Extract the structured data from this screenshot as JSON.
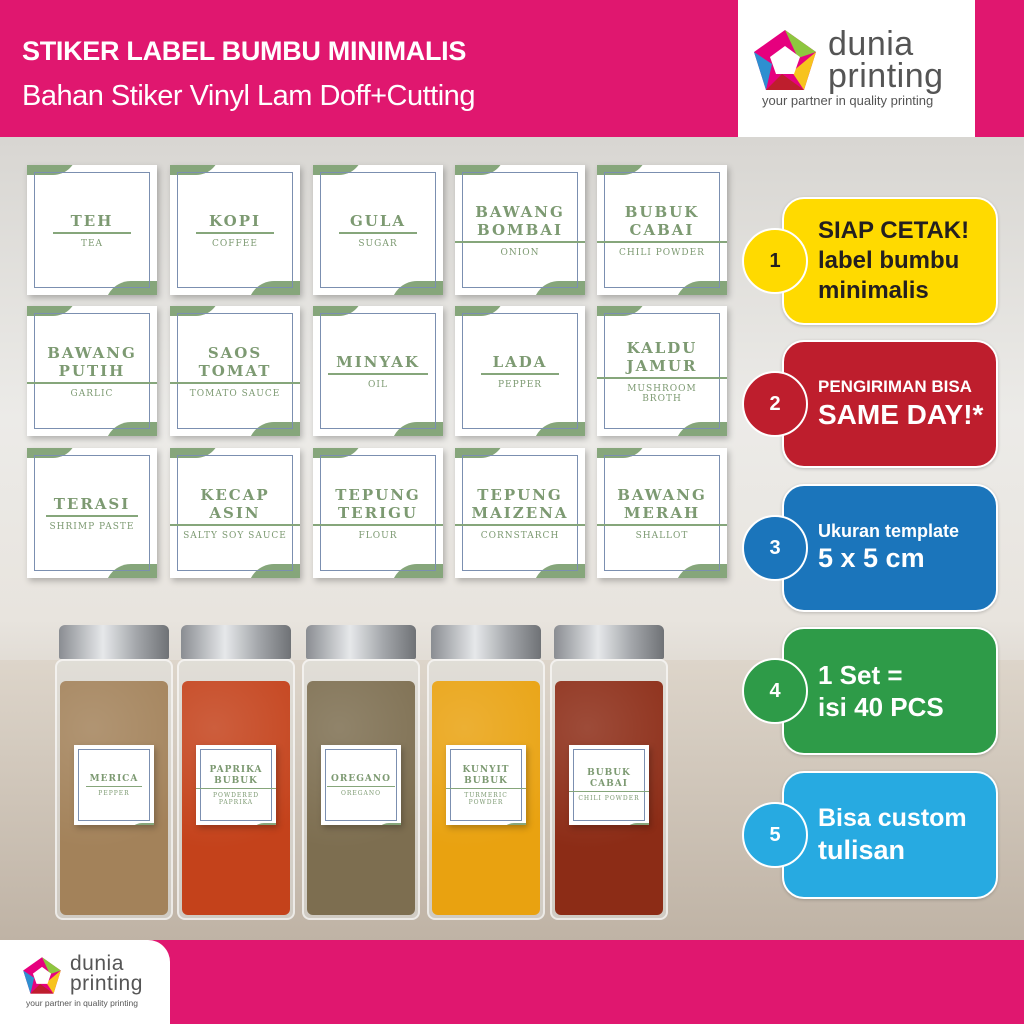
{
  "header": {
    "title": "STIKER LABEL BUMBU MINIMALIS",
    "subtitle": "Bahan Stiker Vinyl Lam Doff+Cutting"
  },
  "logo": {
    "word1": "dunia",
    "word2": "printing",
    "tagline": "your partner in quality printing",
    "colors": [
      "#e6007e",
      "#8dc63f",
      "#f7941d",
      "#be1e2d",
      "#2e8fd0"
    ]
  },
  "labels": [
    {
      "main": "TEH",
      "sub": "TEA"
    },
    {
      "main": "KOPI",
      "sub": "COFFEE"
    },
    {
      "main": "GULA",
      "sub": "SUGAR"
    },
    {
      "main": "BAWANG BOMBAI",
      "sub": "ONION"
    },
    {
      "main": "BUBUK CABAI",
      "sub": "CHILI POWDER"
    },
    {
      "main": "BAWANG PUTIH",
      "sub": "GARLIC"
    },
    {
      "main": "SAOS TOMAT",
      "sub": "TOMATO SAUCE"
    },
    {
      "main": "MINYAK",
      "sub": "OIL"
    },
    {
      "main": "LADA",
      "sub": "PEPPER"
    },
    {
      "main": "KALDU JAMUR",
      "sub": "MUSHROOM BROTH"
    },
    {
      "main": "TERASI",
      "sub": "SHRIMP PASTE"
    },
    {
      "main": "KECAP ASIN",
      "sub": "SALTY SOY SAUCE"
    },
    {
      "main": "TEPUNG TERIGU",
      "sub": "FLOUR"
    },
    {
      "main": "TEPUNG MAIZENA",
      "sub": "CORNSTARCH"
    },
    {
      "main": "BAWANG MERAH",
      "sub": "SHALLOT"
    }
  ],
  "jars": [
    {
      "main": "MERICA",
      "sub": "PEPPER",
      "color": "#a3825a"
    },
    {
      "main": "PAPRIKA BUBUK",
      "sub": "POWDERED PAPRIKA",
      "color": "#c4421b"
    },
    {
      "main": "OREGANO",
      "sub": "OREGANO",
      "color": "#7d6e50"
    },
    {
      "main": "KUNYIT BUBUK",
      "sub": "TURMERIC POWDER",
      "color": "#e9a210"
    },
    {
      "main": "BUBUK CABAI",
      "sub": "CHILI POWDER",
      "color": "#8c2c16"
    }
  ],
  "badges": [
    {
      "num": "1",
      "lines": [
        "SIAP CETAK!",
        "label bumbu",
        "minimalis"
      ],
      "color": "#ffda00",
      "text_color": "#231f20"
    },
    {
      "num": "2",
      "lines": [
        "PENGIRIMAN BISA",
        "SAME DAY!*"
      ],
      "color": "#be1e2d",
      "text_color": "#ffffff"
    },
    {
      "num": "3",
      "lines": [
        "Ukuran template",
        "5 x 5 cm"
      ],
      "color": "#1b75bb",
      "text_color": "#ffffff"
    },
    {
      "num": "4",
      "lines": [
        "1 Set =",
        "isi 40 PCS"
      ],
      "color": "#2e9b48",
      "text_color": "#ffffff"
    },
    {
      "num": "5",
      "lines": [
        "Bisa custom",
        "tulisan"
      ],
      "color": "#27aae1",
      "text_color": "#ffffff"
    }
  ]
}
